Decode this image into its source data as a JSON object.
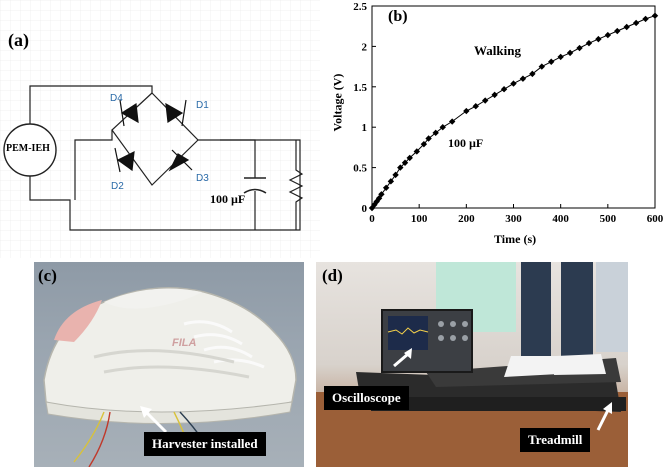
{
  "panel_a": {
    "label": "(a)",
    "source_label": "PEM-IEH",
    "diodes": [
      "D4",
      "D1",
      "D2",
      "D3"
    ],
    "capacitor_label": "100 µF"
  },
  "panel_b": {
    "label": "(b)",
    "annotation_mode": "Walking",
    "annotation_cap": "100 µF"
  },
  "chart_data": {
    "type": "line",
    "title": "",
    "xlabel": "Time (s)",
    "ylabel": "Voltage (V)",
    "xlim": [
      0,
      600
    ],
    "ylim": [
      0,
      2.5
    ],
    "xticks": [
      0,
      100,
      200,
      300,
      400,
      500,
      600
    ],
    "yticks": [
      0,
      0.5,
      1,
      1.5,
      2,
      2.5
    ],
    "x": [
      0,
      5,
      10,
      15,
      20,
      30,
      40,
      50,
      60,
      70,
      80,
      95,
      110,
      120,
      135,
      150,
      170,
      200,
      220,
      240,
      260,
      280,
      300,
      320,
      340,
      360,
      380,
      400,
      420,
      440,
      460,
      480,
      500,
      520,
      540,
      560,
      580,
      600
    ],
    "y": [
      0.0,
      0.04,
      0.08,
      0.12,
      0.17,
      0.25,
      0.33,
      0.41,
      0.5,
      0.56,
      0.62,
      0.7,
      0.79,
      0.86,
      0.93,
      1.0,
      1.07,
      1.2,
      1.26,
      1.33,
      1.4,
      1.47,
      1.54,
      1.6,
      1.66,
      1.75,
      1.81,
      1.87,
      1.92,
      1.98,
      2.04,
      2.09,
      2.14,
      2.19,
      2.24,
      2.29,
      2.34,
      2.38
    ],
    "grid": false,
    "marker": "diamond",
    "color": "#000000"
  },
  "panel_c": {
    "label": "(c)",
    "caption": "Harvester installed",
    "shoe_brand": "FILA"
  },
  "panel_d": {
    "label": "(d)",
    "caption_oscilloscope": "Oscilloscope",
    "caption_treadmill": "Treadmill"
  }
}
